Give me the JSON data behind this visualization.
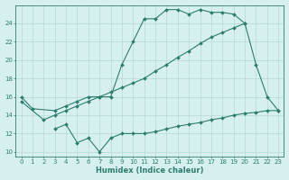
{
  "line1_x": [
    0,
    1,
    3,
    4,
    5,
    6,
    7,
    8,
    9,
    10,
    11,
    12,
    13,
    14,
    15,
    16,
    17,
    18,
    19,
    20,
    21,
    22,
    23
  ],
  "line1_y": [
    16.0,
    14.7,
    14.5,
    15.0,
    15.5,
    16.0,
    16.0,
    16.0,
    19.5,
    22.0,
    24.5,
    24.5,
    25.5,
    25.5,
    25.0,
    25.5,
    25.2,
    25.2,
    25.0,
    24.0,
    19.5,
    16.0,
    14.5
  ],
  "line2_x": [
    0,
    2,
    3,
    4,
    5,
    6,
    7,
    8,
    9,
    10,
    11,
    12,
    13,
    14,
    15,
    16,
    17,
    18,
    19,
    20
  ],
  "line2_y": [
    15.5,
    13.5,
    14.0,
    14.5,
    15.0,
    15.5,
    16.0,
    16.5,
    17.0,
    17.5,
    18.0,
    18.8,
    19.5,
    20.3,
    21.0,
    21.8,
    22.5,
    23.0,
    23.5,
    24.0
  ],
  "line3_x": [
    3,
    4,
    5,
    6,
    7,
    8,
    9,
    10,
    11,
    12,
    13,
    14,
    15,
    16,
    17,
    18,
    19,
    20,
    21,
    22,
    23
  ],
  "line3_y": [
    12.5,
    13.0,
    11.0,
    11.5,
    10.0,
    11.5,
    12.0,
    12.0,
    12.0,
    12.2,
    12.5,
    12.8,
    13.0,
    13.2,
    13.5,
    13.7,
    14.0,
    14.2,
    14.3,
    14.5,
    14.5
  ],
  "color": "#2d7d6e",
  "bg_color": "#d6f0f0",
  "grid_color": "#b5d8d5",
  "xlabel": "Humidex (Indice chaleur)",
  "xlim": [
    -0.5,
    23.5
  ],
  "ylim": [
    9.5,
    26
  ],
  "yticks": [
    10,
    12,
    14,
    16,
    18,
    20,
    22,
    24
  ],
  "xticks": [
    0,
    1,
    2,
    3,
    4,
    5,
    6,
    7,
    8,
    9,
    10,
    11,
    12,
    13,
    14,
    15,
    16,
    17,
    18,
    19,
    20,
    21,
    22,
    23
  ],
  "marker": "D",
  "markersize": 2.0,
  "linewidth": 0.8,
  "tick_fontsize": 5.0,
  "xlabel_fontsize": 6.0
}
